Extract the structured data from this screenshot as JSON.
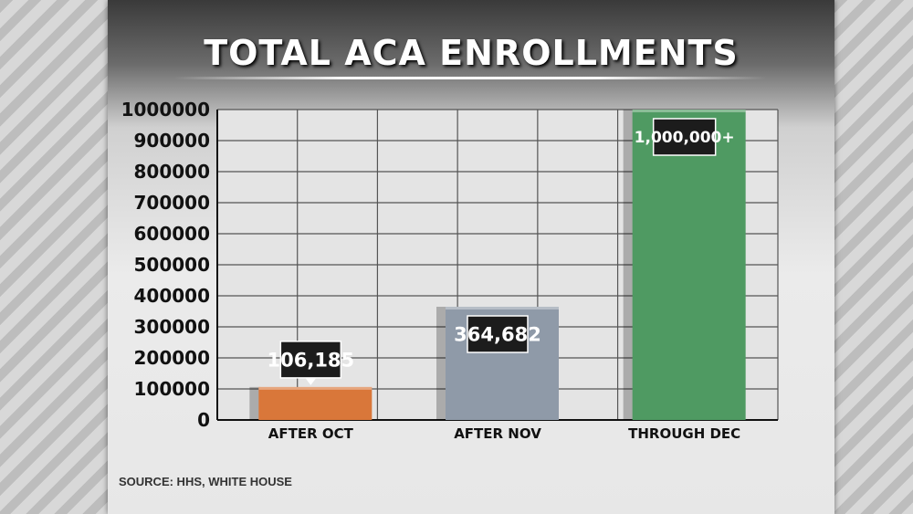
{
  "source": "SOURCE: HHS, WHITE HOUSE",
  "chart_data": {
    "type": "bar",
    "title": "TOTAL ACA ENROLLMENTS",
    "categories": [
      "AFTER OCT",
      "AFTER NOV",
      "THROUGH DEC"
    ],
    "values": [
      106185,
      364682,
      1000000
    ],
    "data_labels": [
      "106,185",
      "364,682",
      "1,000,000+"
    ],
    "colors": [
      "#d9773a",
      "#8f9aa8",
      "#4f9a62"
    ],
    "ylim": [
      0,
      1000000
    ],
    "yticks": [
      "1000000",
      "900000",
      "800000",
      "700000",
      "600000",
      "500000",
      "400000",
      "300000",
      "200000",
      "100000",
      "0"
    ],
    "grid": true,
    "xlabel": "",
    "ylabel": ""
  }
}
